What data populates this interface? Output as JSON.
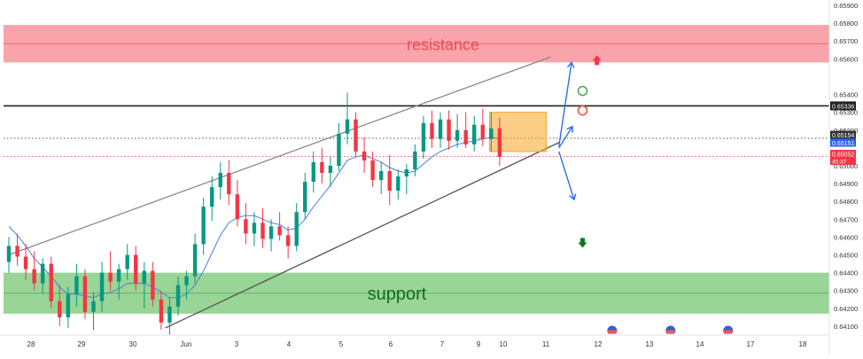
{
  "chart_data": {
    "type": "candlestick",
    "x_ticks": [
      "28",
      "29",
      "30",
      "Jun",
      "3",
      "4",
      "5",
      "6",
      "7",
      "9",
      "10",
      "11",
      "12",
      "13",
      "14",
      "17",
      "18"
    ],
    "y_ticks": [
      "0.65900",
      "0.65800",
      "0.65700",
      "0.65600",
      "0.65400",
      "0.65300",
      "0.65200",
      "0.65000",
      "0.64900",
      "0.64800",
      "0.64700",
      "0.64600",
      "0.64500",
      "0.64400",
      "0.64300",
      "0.64200",
      "0.64100"
    ],
    "ylim": [
      0.6405,
      0.6593
    ],
    "zones": [
      {
        "name": "resistance",
        "from": 0.6558,
        "to": 0.6579,
        "color": "#f77c86"
      },
      {
        "name": "support",
        "from": 0.6417,
        "to": 0.644,
        "color": "#6cc36a"
      }
    ],
    "levels": [
      {
        "value": 0.65336,
        "label": "0.65336",
        "color": "#222222"
      },
      {
        "value": 0.65154,
        "label": "0.65154",
        "color": "#333333"
      },
      {
        "value": 0.65151,
        "label": "0.65151",
        "color": "#2962ff"
      },
      {
        "value": 0.65052,
        "label": "0.65052",
        "color": "#f23645",
        "sub": "45:37"
      }
    ],
    "candles": [
      [
        0.6446,
        0.646,
        0.644,
        0.6455
      ],
      [
        0.6455,
        0.6462,
        0.6444,
        0.6449
      ],
      [
        0.6449,
        0.6456,
        0.6436,
        0.6442
      ],
      [
        0.6442,
        0.6452,
        0.643,
        0.6434
      ],
      [
        0.6434,
        0.6448,
        0.6428,
        0.6445
      ],
      [
        0.6445,
        0.6449,
        0.642,
        0.6424
      ],
      [
        0.6424,
        0.6433,
        0.641,
        0.6415
      ],
      [
        0.6415,
        0.6432,
        0.6409,
        0.6428
      ],
      [
        0.6428,
        0.6445,
        0.6421,
        0.6438
      ],
      [
        0.6438,
        0.6442,
        0.6414,
        0.6418
      ],
      [
        0.6418,
        0.6429,
        0.6408,
        0.6424
      ],
      [
        0.6424,
        0.6446,
        0.6418,
        0.644
      ],
      [
        0.644,
        0.6452,
        0.643,
        0.6435
      ],
      [
        0.6435,
        0.6445,
        0.6425,
        0.6442
      ],
      [
        0.6442,
        0.6456,
        0.6436,
        0.645
      ],
      [
        0.645,
        0.6455,
        0.643,
        0.6434
      ],
      [
        0.6434,
        0.6446,
        0.642,
        0.6441
      ],
      [
        0.6441,
        0.6446,
        0.6421,
        0.6425
      ],
      [
        0.6425,
        0.643,
        0.6408,
        0.6412
      ],
      [
        0.6412,
        0.6426,
        0.6405,
        0.6421
      ],
      [
        0.6421,
        0.6438,
        0.6416,
        0.6433
      ],
      [
        0.6433,
        0.6441,
        0.6425,
        0.6438
      ],
      [
        0.6438,
        0.6462,
        0.6434,
        0.6456
      ],
      [
        0.6456,
        0.6482,
        0.645,
        0.6477
      ],
      [
        0.6477,
        0.6494,
        0.6469,
        0.6488
      ],
      [
        0.6488,
        0.6502,
        0.6481,
        0.6496
      ],
      [
        0.6496,
        0.6503,
        0.6478,
        0.6484
      ],
      [
        0.6484,
        0.6492,
        0.6466,
        0.647
      ],
      [
        0.647,
        0.6479,
        0.6456,
        0.6462
      ],
      [
        0.6462,
        0.6474,
        0.6455,
        0.6468
      ],
      [
        0.6468,
        0.6476,
        0.6454,
        0.6459
      ],
      [
        0.6459,
        0.647,
        0.6452,
        0.6466
      ],
      [
        0.6466,
        0.6474,
        0.6458,
        0.6461
      ],
      [
        0.6461,
        0.6466,
        0.6448,
        0.6455
      ],
      [
        0.6455,
        0.6479,
        0.6452,
        0.6474
      ],
      [
        0.6474,
        0.6496,
        0.647,
        0.6491
      ],
      [
        0.6491,
        0.6508,
        0.6485,
        0.6502
      ],
      [
        0.6502,
        0.651,
        0.649,
        0.6496
      ],
      [
        0.6496,
        0.6505,
        0.6488,
        0.65
      ],
      [
        0.65,
        0.6524,
        0.6497,
        0.6518
      ],
      [
        0.6518,
        0.6541,
        0.6512,
        0.6526
      ],
      [
        0.6526,
        0.653,
        0.6505,
        0.6508
      ],
      [
        0.6508,
        0.6516,
        0.6496,
        0.6503
      ],
      [
        0.6503,
        0.6508,
        0.6488,
        0.6492
      ],
      [
        0.6492,
        0.6502,
        0.6484,
        0.6497
      ],
      [
        0.6497,
        0.6506,
        0.6478,
        0.6486
      ],
      [
        0.6486,
        0.6498,
        0.6481,
        0.6494
      ],
      [
        0.6494,
        0.6501,
        0.6484,
        0.6498
      ],
      [
        0.6498,
        0.6512,
        0.6494,
        0.6508
      ],
      [
        0.6508,
        0.6528,
        0.6504,
        0.6524
      ],
      [
        0.6524,
        0.6531,
        0.651,
        0.6515
      ],
      [
        0.6515,
        0.653,
        0.651,
        0.6526
      ],
      [
        0.6526,
        0.6531,
        0.6509,
        0.6514
      ],
      [
        0.6514,
        0.6529,
        0.651,
        0.652
      ],
      [
        0.652,
        0.653,
        0.651,
        0.6512
      ],
      [
        0.6512,
        0.6528,
        0.6508,
        0.6523
      ],
      [
        0.6523,
        0.6532,
        0.6511,
        0.6515
      ],
      [
        0.6515,
        0.653,
        0.6508,
        0.6521
      ],
      [
        0.6521,
        0.6527,
        0.65,
        0.6505
      ]
    ],
    "ma": [
      0.6466,
      0.6461,
      0.6455,
      0.6448,
      0.6443,
      0.6438,
      0.6432,
      0.6428,
      0.6428,
      0.6427,
      0.6426,
      0.6428,
      0.6429,
      0.6431,
      0.6434,
      0.6434,
      0.6434,
      0.6432,
      0.6429,
      0.6426,
      0.6426,
      0.6428,
      0.6433,
      0.6441,
      0.6451,
      0.6461,
      0.6468,
      0.6471,
      0.6472,
      0.6472,
      0.647,
      0.6468,
      0.6467,
      0.6464,
      0.6465,
      0.647,
      0.6477,
      0.6483,
      0.6489,
      0.6496,
      0.6503,
      0.6505,
      0.6506,
      0.6504,
      0.6502,
      0.6499,
      0.6497,
      0.6496,
      0.6497,
      0.6501,
      0.6505,
      0.6508,
      0.651,
      0.6512,
      0.6513,
      0.6514,
      0.6515,
      0.6516,
      0.6515
    ],
    "channel": {
      "upper": [
        {
          "x": 0.0,
          "y": 0.645
        },
        {
          "x": 64.0,
          "y": 0.6561
        }
      ],
      "lower": [
        {
          "x": 18.5,
          "y": 0.6409
        },
        {
          "x": 65.0,
          "y": 0.6513
        }
      ]
    },
    "consolidation_box": {
      "x_from": 56.8,
      "x_to": 63.5,
      "from": 0.6508,
      "to": 0.653,
      "color": "#f5a623"
    },
    "scenarios": [
      {
        "direction": "up",
        "path": [
          {
            "x": 65.0,
            "y": 0.6511
          },
          {
            "x": 66.5,
            "y": 0.6558
          }
        ]
      },
      {
        "direction": "bounce",
        "path": [
          {
            "x": 65.0,
            "y": 0.651
          },
          {
            "x": 66.6,
            "y": 0.6522
          }
        ]
      },
      {
        "direction": "down",
        "path": [
          {
            "x": 65.0,
            "y": 0.6508
          },
          {
            "x": 66.8,
            "y": 0.6481
          }
        ]
      }
    ],
    "resistance_arrow": {
      "x": 69.5,
      "y": 0.6559,
      "color": "#f23645"
    },
    "support_arrow": {
      "x": 67.8,
      "y": 0.6457,
      "color": "#0b7a1a"
    },
    "circles": [
      {
        "x": 67.8,
        "y": 0.6542,
        "color": "#4caf50"
      },
      {
        "x": 67.8,
        "y": 0.6531,
        "color": "#f2533d"
      }
    ],
    "event_markers": [
      {
        "x": 71.3
      },
      {
        "x": 78.2
      },
      {
        "x": 85.0
      }
    ],
    "labels": {
      "resistance": "resistance",
      "support": "support"
    }
  }
}
